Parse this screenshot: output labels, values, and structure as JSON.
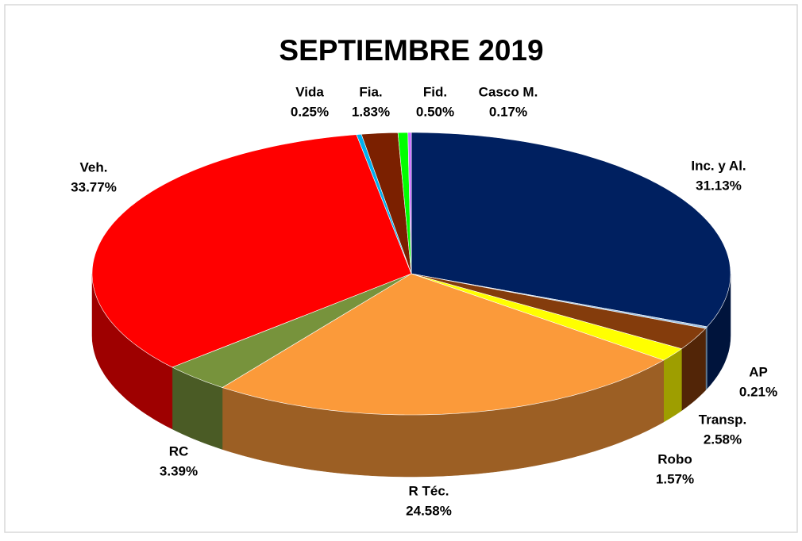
{
  "chart_data": {
    "type": "pie3d",
    "title": "SEPTIEMBRE 2019",
    "categories": [
      "Inc. y Al.",
      "AP",
      "Transp.",
      "Robo",
      "R Téc.",
      "RC",
      "Veh.",
      "Vida",
      "Fia.",
      "Fid.",
      "Casco M."
    ],
    "values": [
      31.13,
      0.21,
      2.58,
      1.57,
      24.58,
      3.39,
      33.77,
      0.25,
      1.83,
      0.5,
      0.17
    ],
    "value_labels": [
      "31.13%",
      "0.21%",
      "2.58%",
      "1.57%",
      "24.58%",
      "3.39%",
      "33.77%",
      "0.25%",
      "1.83%",
      "0.50%",
      "0.17%"
    ],
    "colors": [
      "#002060",
      "#9dc3e6",
      "#843c0c",
      "#ffff00",
      "#fb9a3a",
      "#77933c",
      "#ff0000",
      "#00b0f0",
      "#7b2000",
      "#00ff00",
      "#cc66ff"
    ]
  }
}
